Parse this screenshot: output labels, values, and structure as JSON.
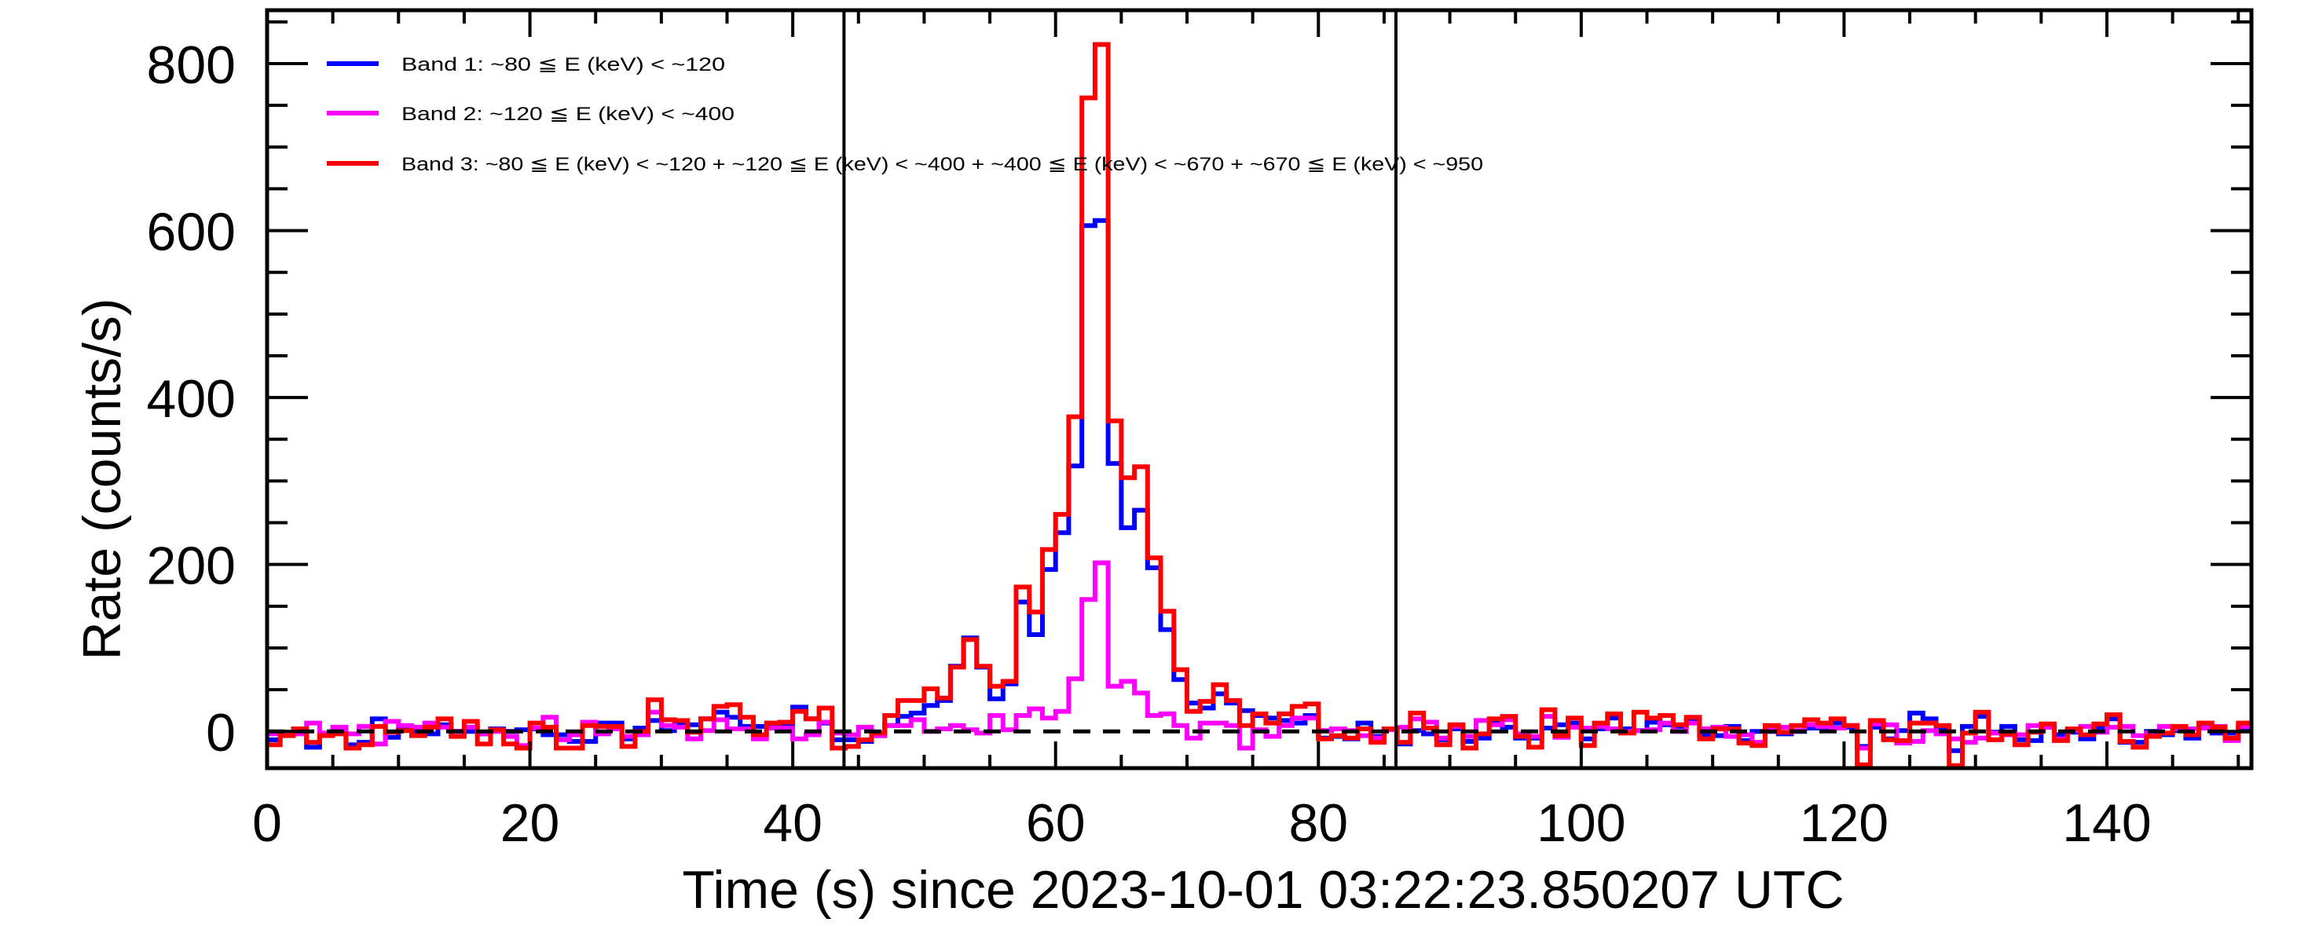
{
  "chart_data": {
    "type": "line",
    "style": "step-histogram",
    "title": "",
    "xlabel": "Time (s) since 2023-10-01 03:22:23.850207 UTC",
    "ylabel": "Rate (counts/s)",
    "xlim": [
      0,
      151
    ],
    "ylim": [
      -44,
      864
    ],
    "x_ticks": [
      0,
      20,
      40,
      60,
      80,
      100,
      120,
      140
    ],
    "x_tick_labels": [
      "0",
      "20",
      "40",
      "60",
      "80",
      "100",
      "120",
      "140"
    ],
    "y_ticks": [
      0,
      200,
      400,
      600,
      800
    ],
    "y_tick_labels": [
      "0",
      "200",
      "400",
      "600",
      "800"
    ],
    "x_minor_step": 5,
    "y_minor_step": 50,
    "bin_start": 0,
    "bin_width": 1,
    "grid": false,
    "legend_position": "top-left",
    "reference_lines": {
      "horizontal_dashed_y": 0,
      "vertical_x": [
        43.9,
        85.9
      ]
    },
    "series": [
      {
        "name": "Band 1: ~80 ≦ E (keV) < ~120",
        "color": "#0000ff",
        "values": [
          -10,
          -1,
          0,
          -19,
          -3,
          -1,
          -16,
          -13,
          15,
          -7,
          3,
          0,
          -3,
          8,
          0,
          0,
          -3,
          3,
          0,
          2,
          3,
          -4,
          -4,
          -12,
          -12,
          10,
          10,
          -9,
          4,
          13,
          1,
          8,
          8,
          15,
          23,
          17,
          6,
          6,
          5,
          8,
          29,
          15,
          10,
          -10,
          -10,
          -12,
          -5,
          7,
          18,
          22,
          31,
          37,
          78,
          112,
          77,
          39,
          57,
          155,
          116,
          194,
          238,
          318,
          606,
          612,
          321,
          244,
          265,
          196,
          122,
          62,
          34,
          28,
          45,
          34,
          25,
          19,
          16,
          13,
          10,
          19,
          -8,
          -6,
          -9,
          10,
          -6,
          3,
          -15,
          1,
          -3,
          -10,
          3,
          -12,
          -8,
          12,
          5,
          -8,
          -8,
          4,
          8,
          10,
          -9,
          3,
          16,
          3,
          1,
          11,
          8,
          6,
          14,
          -5,
          -5,
          6,
          -11,
          0,
          0,
          -3,
          0,
          4,
          4,
          10,
          5,
          -18,
          5,
          -9,
          1,
          22,
          15,
          4,
          -23,
          6,
          18,
          -1,
          6,
          -10,
          -11,
          5,
          -4,
          -1,
          -9,
          5,
          15,
          -13,
          -13,
          0,
          -4,
          1,
          -8,
          6,
          -2,
          -2,
          5
        ]
      },
      {
        "name": "Band 2: ~120 ≦ E (keV) < ~400",
        "color": "#ff00ff",
        "values": [
          -3,
          -2,
          -3,
          10,
          -2,
          5,
          -3,
          6,
          -15,
          12,
          7,
          5,
          10,
          5,
          0,
          5,
          -3,
          0,
          -6,
          -17,
          4,
          17,
          -10,
          -4,
          11,
          -3,
          3,
          -6,
          -4,
          23,
          7,
          5,
          -9,
          1,
          14,
          3,
          3,
          -9,
          4,
          4,
          -9,
          -4,
          11,
          -2,
          -4,
          5,
          -5,
          7,
          7,
          14,
          0,
          3,
          7,
          2,
          -2,
          19,
          2,
          19,
          27,
          16,
          24,
          63,
          158,
          202,
          54,
          60,
          46,
          19,
          21,
          7,
          -8,
          10,
          10,
          7,
          -20,
          2,
          -6,
          7,
          16,
          16,
          1,
          3,
          1,
          -5,
          -8,
          2,
          5,
          15,
          11,
          -8,
          6,
          -6,
          13,
          8,
          14,
          -3,
          -6,
          18,
          -7,
          5,
          4,
          6,
          3,
          0,
          1,
          2,
          10,
          0,
          10,
          3,
          5,
          -6,
          -4,
          -13,
          4,
          5,
          1,
          8,
          6,
          4,
          7,
          -20,
          9,
          8,
          -14,
          -12,
          1,
          -3,
          -9,
          -13,
          -8,
          -2,
          -4,
          -4,
          7,
          5,
          -9,
          1,
          6,
          -1,
          5,
          6,
          -5,
          -2,
          6,
          3,
          3,
          4,
          6,
          -11,
          6
        ]
      },
      {
        "name": "Band 3: ~80 ≦ E (keV) < ~120 + ~120 ≦ E (keV) < ~400 + ~400 ≦ E (keV) < ~670 + ~670 ≦ E (keV) < ~950",
        "color": "#ff0000",
        "values": [
          -16,
          -5,
          3,
          -13,
          -5,
          -3,
          -20,
          -16,
          6,
          -1,
          1,
          -5,
          5,
          15,
          -6,
          12,
          -15,
          2,
          -15,
          -20,
          10,
          5,
          -20,
          -20,
          7,
          6,
          6,
          -18,
          0,
          38,
          14,
          13,
          -1,
          15,
          30,
          32,
          17,
          -4,
          10,
          11,
          24,
          15,
          28,
          -20,
          -18,
          -10,
          -2,
          19,
          37,
          37,
          51,
          40,
          77,
          110,
          78,
          54,
          60,
          173,
          143,
          218,
          260,
          377,
          759,
          823,
          372,
          304,
          317,
          208,
          144,
          74,
          24,
          36,
          56,
          37,
          7,
          21,
          10,
          21,
          30,
          33,
          -9,
          -5,
          -8,
          3,
          -13,
          3,
          -13,
          22,
          4,
          -16,
          8,
          -20,
          -3,
          15,
          18,
          -6,
          -19,
          26,
          -5,
          16,
          -17,
          10,
          21,
          -2,
          23,
          16,
          19,
          8,
          17,
          -9,
          3,
          3,
          -14,
          -17,
          7,
          -1,
          7,
          14,
          10,
          15,
          7,
          -40,
          13,
          -10,
          -11,
          10,
          10,
          7,
          -41,
          -2,
          23,
          -10,
          -3,
          -16,
          -1,
          9,
          -11,
          3,
          -4,
          9,
          20,
          -12,
          -19,
          -6,
          -2,
          6,
          -4,
          10,
          5,
          -8,
          10
        ]
      }
    ]
  }
}
